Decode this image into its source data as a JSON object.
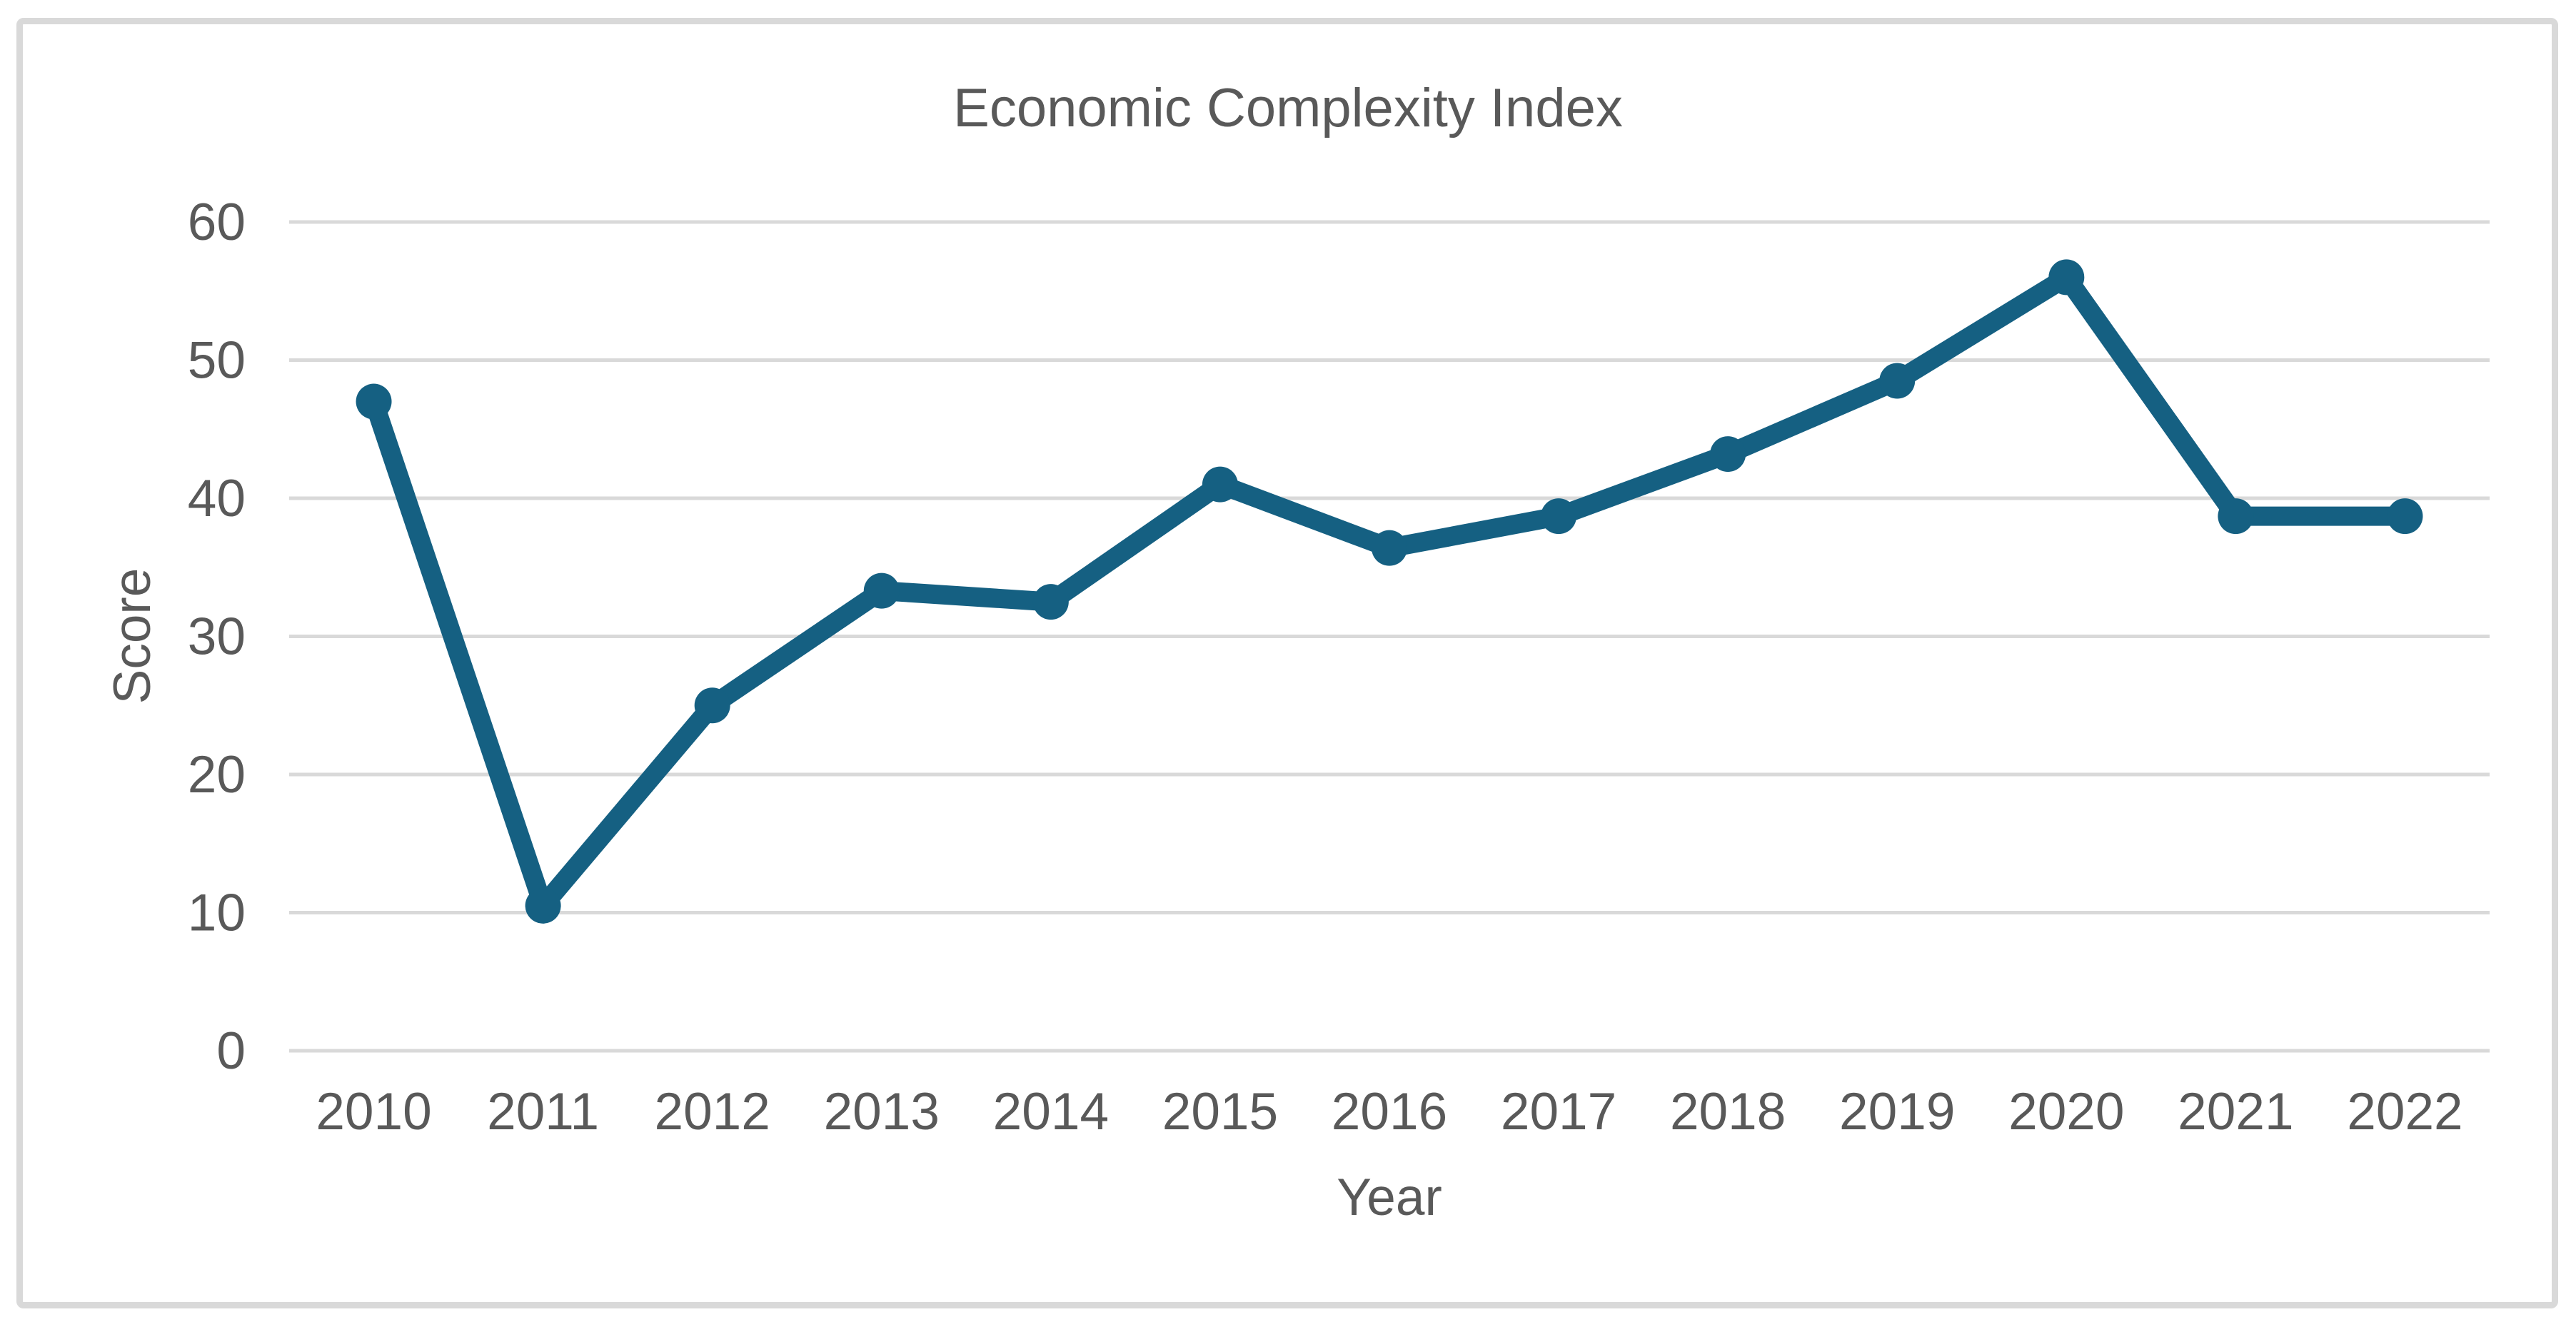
{
  "chart": {
    "title": "Economic Complexity Index",
    "x_axis_label": "Year",
    "y_axis_label": "Score"
  },
  "chart_data": {
    "type": "line",
    "title": "Economic Complexity Index",
    "xlabel": "Year",
    "ylabel": "Score",
    "categories": [
      "2010",
      "2011",
      "2012",
      "2013",
      "2014",
      "2015",
      "2016",
      "2017",
      "2018",
      "2019",
      "2020",
      "2021",
      "2022"
    ],
    "series": [
      {
        "name": "Economic Complexity Index",
        "values": [
          47,
          10.5,
          25,
          33.3,
          32.5,
          41,
          36.4,
          38.7,
          43.2,
          48.5,
          56,
          38.7,
          38.7
        ]
      }
    ],
    "ylim": [
      0,
      60
    ],
    "ytick_step": 10,
    "yticks": [
      0,
      10,
      20,
      30,
      40,
      50,
      60
    ],
    "grid": "horizontal",
    "legend": "none",
    "marker": "circle",
    "colors": {
      "line": "#156082",
      "marker": "#156082",
      "gridline": "#D9D9D9",
      "text": "#595959",
      "border": "#D9D9D9",
      "background": "#FFFFFF"
    }
  }
}
